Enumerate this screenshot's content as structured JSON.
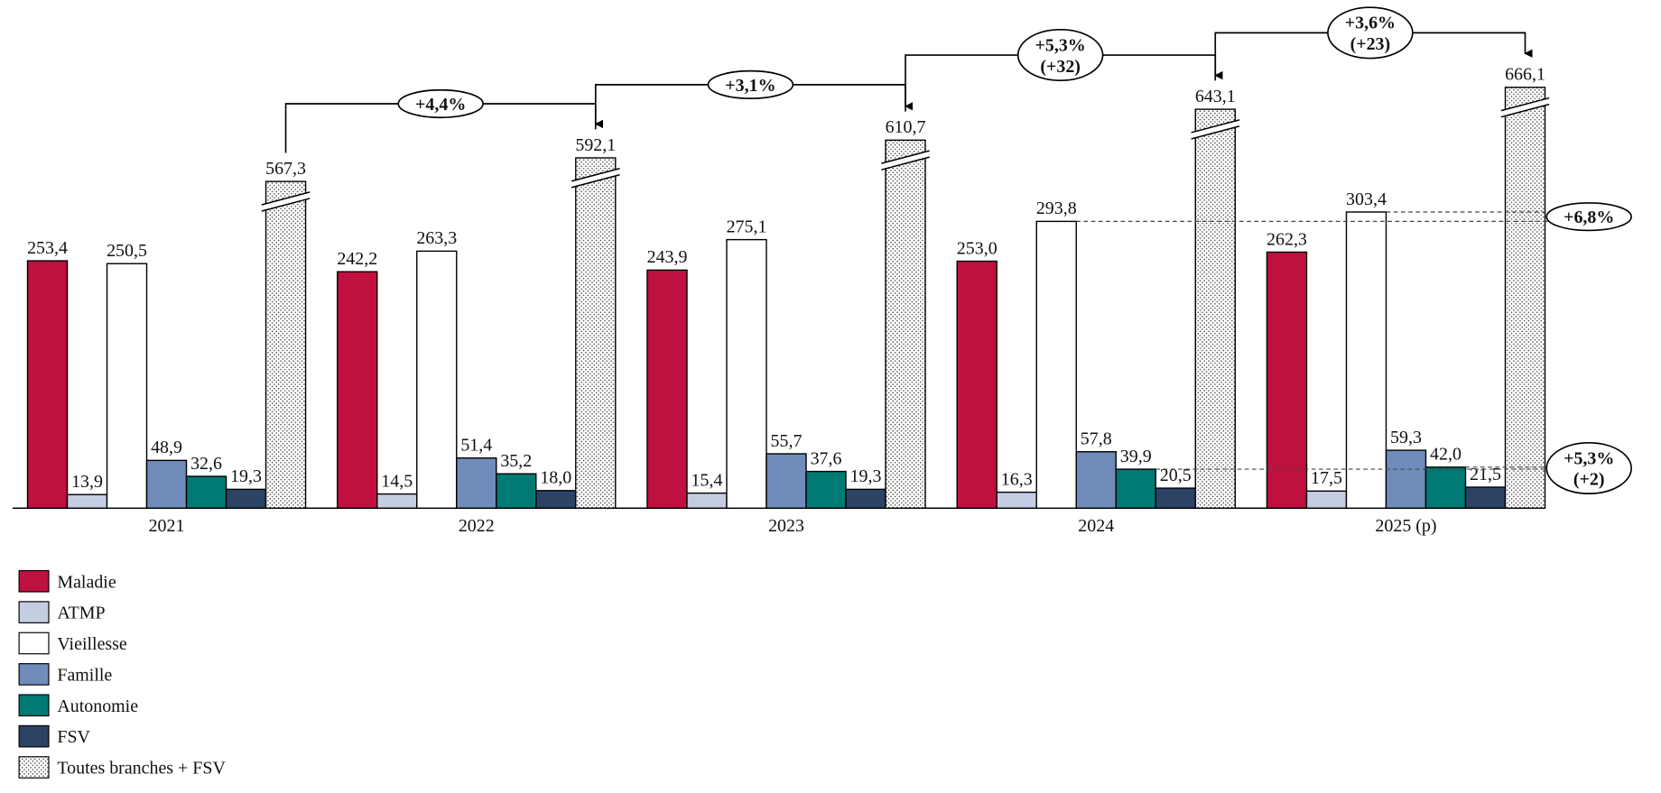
{
  "chart_data": {
    "type": "bar",
    "categories": [
      "2021",
      "2022",
      "2023",
      "2024",
      "2025 (p)"
    ],
    "series": [
      {
        "name": "Maladie",
        "color": "#c0103f",
        "values": [
          253.4,
          242.2,
          243.9,
          253.0,
          262.3
        ],
        "value_labels": [
          "253,4",
          "242,2",
          "243,9",
          "253,0",
          "262,3"
        ]
      },
      {
        "name": "ATMP",
        "color": "#c5cde3",
        "values": [
          13.9,
          14.5,
          15.4,
          16.3,
          17.5
        ],
        "value_labels": [
          "13,9",
          "14,5",
          "15,4",
          "16,3",
          "17,5"
        ]
      },
      {
        "name": "Vieillesse",
        "color": "#ffffff",
        "values": [
          250.5,
          263.3,
          275.1,
          293.8,
          303.4
        ],
        "value_labels": [
          "250,5",
          "263,3",
          "275,1",
          "293,8",
          "303,4"
        ]
      },
      {
        "name": "Famille",
        "color": "#6f8cba",
        "values": [
          48.9,
          51.4,
          55.7,
          57.8,
          59.3
        ],
        "value_labels": [
          "48,9",
          "51,4",
          "55,7",
          "57,8",
          "59,3"
        ]
      },
      {
        "name": "Autonomie",
        "color": "#007a73",
        "values": [
          32.6,
          35.2,
          37.6,
          39.9,
          42.0
        ],
        "value_labels": [
          "32,6",
          "35,2",
          "37,6",
          "39,9",
          "42,0"
        ]
      },
      {
        "name": "FSV",
        "color": "#2c4366",
        "values": [
          19.3,
          18.0,
          19.3,
          20.5,
          21.5
        ],
        "value_labels": [
          "19,3",
          "18,0",
          "19,3",
          "20,5",
          "21,5"
        ]
      },
      {
        "name": "Toutes branches + FSV",
        "color": "#ffffff",
        "pattern": "dots",
        "axis_break": true,
        "values": [
          567.3,
          592.1,
          610.7,
          643.1,
          666.1
        ],
        "value_labels": [
          "567,3",
          "592,1",
          "610,7",
          "643,1",
          "666,1"
        ]
      }
    ],
    "growth_arrows": [
      [
        "+4,4%"
      ],
      [
        "+3,1%"
      ],
      [
        "+5,3%",
        "(+32)"
      ],
      [
        "+3,6%",
        "(+23)"
      ]
    ],
    "comparisons": [
      [
        "+6,8%"
      ],
      [
        "+5,3%",
        "(+2)"
      ]
    ]
  }
}
